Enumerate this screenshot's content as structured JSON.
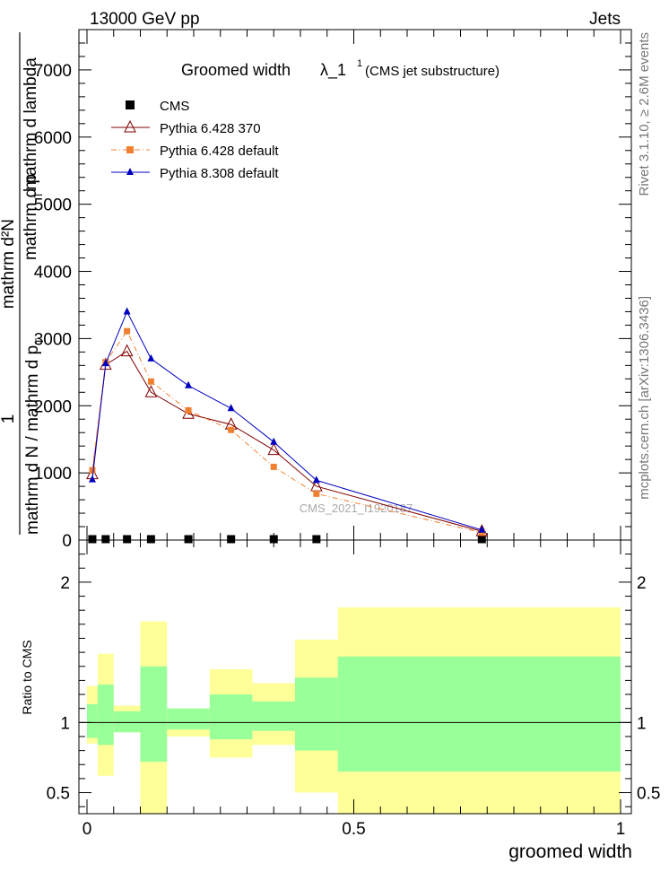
{
  "header": {
    "left": "13000 GeV pp",
    "right": "Jets"
  },
  "side_labels": {
    "rivet": "Rivet 3.1.10, ≥ 2.6M events",
    "mcplots": "mcplots.cern.ch [arXiv:1306.3436]"
  },
  "watermark": "CMS_2021_I1920187",
  "chart_data": [
    {
      "panel": "main",
      "type": "line",
      "title": {
        "main": "Groomed width",
        "symbol": "λ_1",
        "sup": "1",
        "note": "(CMS jet substructure)"
      },
      "ylabel": {
        "one": "1",
        "denominator": "mathrm d N / mathrm d p",
        "denominator_sub": "T",
        "numerator": "mathrm d²N",
        "numerator_sub": "mathrm d p",
        "numerator_sub_t": "T",
        "numerator_end": "mathrm d lambda"
      },
      "xlim": [
        0,
        1
      ],
      "ylim": [
        0,
        7600
      ],
      "yticks": [
        0,
        1000,
        2000,
        3000,
        4000,
        5000,
        6000,
        7000
      ],
      "ytick_labels": [
        "0",
        "1000",
        "2000",
        "3000",
        "4000",
        "5000",
        "6000",
        "7000"
      ],
      "legend_position": "top-left",
      "series": [
        {
          "name": "CMS",
          "marker": "square",
          "color": "#000000",
          "x": [
            0.01,
            0.035,
            0.075,
            0.12,
            0.19,
            0.27,
            0.35,
            0.43,
            0.74
          ],
          "y": [
            15,
            15,
            15,
            15,
            15,
            15,
            15,
            15,
            15
          ]
        },
        {
          "name": "Pythia 6.428 370",
          "marker": "open-triangle",
          "color": "#800000",
          "line": "solid",
          "x": [
            0.01,
            0.035,
            0.075,
            0.12,
            0.19,
            0.27,
            0.35,
            0.43,
            0.74
          ],
          "y": [
            980,
            2610,
            2810,
            2200,
            1880,
            1720,
            1340,
            800,
            130
          ]
        },
        {
          "name": "Pythia 6.428 default",
          "marker": "square",
          "color": "#f08030",
          "line": "dash-dot",
          "x": [
            0.01,
            0.035,
            0.075,
            0.12,
            0.19,
            0.27,
            0.35,
            0.43,
            0.74
          ],
          "y": [
            1040,
            2650,
            3110,
            2360,
            1930,
            1640,
            1090,
            690,
            110
          ]
        },
        {
          "name": "Pythia 8.308 default",
          "marker": "triangle",
          "color": "#0000c0",
          "line": "solid",
          "x": [
            0.01,
            0.035,
            0.075,
            0.12,
            0.19,
            0.27,
            0.35,
            0.43,
            0.74
          ],
          "y": [
            900,
            2630,
            3400,
            2700,
            2300,
            1960,
            1460,
            890,
            150
          ]
        }
      ]
    },
    {
      "panel": "ratio",
      "type": "area",
      "ylabel": "Ratio to CMS",
      "xlabel": "groomed width",
      "xlim": [
        0,
        1
      ],
      "ylim": [
        0.35,
        2.3
      ],
      "yticks": [
        0.5,
        1,
        2
      ],
      "ytick_labels": [
        "0.5",
        "1",
        "2"
      ],
      "xticks": [
        0,
        0.5,
        1
      ],
      "xtick_labels": [
        "0",
        "0.5",
        "1"
      ],
      "reference": 1,
      "bins": [
        {
          "xlo": 0.0,
          "xhi": 0.02,
          "stat": [
            0.89,
            1.13
          ],
          "total": [
            0.85,
            1.26
          ]
        },
        {
          "xlo": 0.02,
          "xhi": 0.05,
          "stat": [
            0.84,
            1.27
          ],
          "total": [
            0.62,
            1.49
          ]
        },
        {
          "xlo": 0.05,
          "xhi": 0.1,
          "stat": [
            0.93,
            1.08
          ],
          "total": [
            0.93,
            1.12
          ]
        },
        {
          "xlo": 0.1,
          "xhi": 0.15,
          "stat": [
            0.72,
            1.4
          ],
          "total": [
            0.35,
            1.72
          ]
        },
        {
          "xlo": 0.15,
          "xhi": 0.23,
          "stat": [
            0.95,
            1.1
          ],
          "total": [
            0.9,
            1.1
          ]
        },
        {
          "xlo": 0.23,
          "xhi": 0.31,
          "stat": [
            0.88,
            1.2
          ],
          "total": [
            0.75,
            1.38
          ]
        },
        {
          "xlo": 0.31,
          "xhi": 0.39,
          "stat": [
            0.94,
            1.15
          ],
          "total": [
            0.84,
            1.28
          ]
        },
        {
          "xlo": 0.39,
          "xhi": 0.47,
          "stat": [
            0.8,
            1.32
          ],
          "total": [
            0.5,
            1.59
          ]
        },
        {
          "xlo": 0.47,
          "xhi": 1.0,
          "stat": [
            0.65,
            1.47
          ],
          "total": [
            0.35,
            1.82
          ]
        }
      ]
    }
  ],
  "colors": {
    "stat_band": "#99ff99",
    "total_band": "#ffff99"
  }
}
